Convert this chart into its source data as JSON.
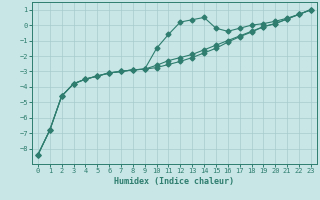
{
  "xlabel": "Humidex (Indice chaleur)",
  "x_values": [
    0,
    1,
    2,
    3,
    4,
    5,
    6,
    7,
    8,
    9,
    10,
    11,
    12,
    13,
    14,
    15,
    16,
    17,
    18,
    19,
    20,
    21,
    22,
    23
  ],
  "line1": [
    -8.4,
    -6.8,
    -4.6,
    -3.8,
    -3.5,
    -3.3,
    -3.1,
    -3.0,
    -2.9,
    -2.85,
    -1.5,
    -0.6,
    0.2,
    0.35,
    0.5,
    -0.2,
    -0.4,
    -0.2,
    0.0,
    0.1,
    0.25,
    0.45,
    0.7,
    1.0
  ],
  "line2": [
    -8.4,
    -6.8,
    -4.6,
    -3.8,
    -3.5,
    -3.3,
    -3.1,
    -3.0,
    -2.9,
    -2.85,
    -2.6,
    -2.3,
    -2.1,
    -1.9,
    -1.6,
    -1.3,
    -1.0,
    -0.7,
    -0.4,
    -0.1,
    0.1,
    0.4,
    0.7,
    1.0
  ],
  "line3": [
    -8.4,
    -6.8,
    -4.6,
    -3.8,
    -3.5,
    -3.3,
    -3.1,
    -3.0,
    -2.9,
    -2.85,
    -2.75,
    -2.55,
    -2.35,
    -2.1,
    -1.8,
    -1.5,
    -1.1,
    -0.75,
    -0.45,
    -0.1,
    0.1,
    0.4,
    0.7,
    1.0
  ],
  "line_color": "#2E7D6E",
  "bg_color": "#C8E6E6",
  "grid_color": "#A8CCCC",
  "ylim": [
    -9.0,
    1.5
  ],
  "xlim": [
    -0.5,
    23.5
  ],
  "yticks": [
    -8,
    -7,
    -6,
    -5,
    -4,
    -3,
    -2,
    -1,
    0,
    1
  ],
  "xticks": [
    0,
    1,
    2,
    3,
    4,
    5,
    6,
    7,
    8,
    9,
    10,
    11,
    12,
    13,
    14,
    15,
    16,
    17,
    18,
    19,
    20,
    21,
    22,
    23
  ],
  "tick_fontsize": 5.0,
  "xlabel_fontsize": 6.0
}
